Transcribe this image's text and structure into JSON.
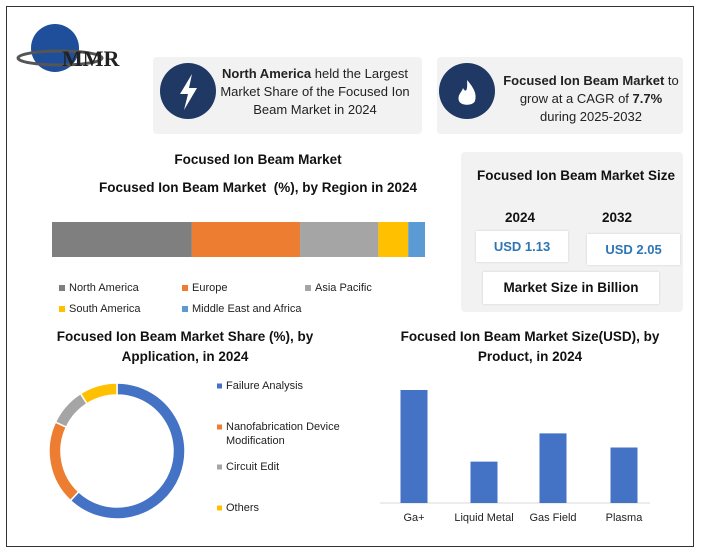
{
  "logo": "MMR",
  "highlights": [
    {
      "parts": [
        {
          "text": "North America",
          "bold": true
        },
        {
          "text": " held the Largest Market Share of the Focused Ion Beam Market in 2024",
          "bold": false
        }
      ]
    },
    {
      "parts": [
        {
          "text": "Focused Ion Beam Market",
          "bold": true
        },
        {
          "text": " to grow at a CAGR of ",
          "bold": false
        },
        {
          "text": "7.7%",
          "bold": true
        },
        {
          "text": " during 2025-2032",
          "bold": false
        }
      ]
    }
  ],
  "market_size": {
    "title": "Focused Ion Beam Market Size",
    "years": [
      "2024",
      "2032"
    ],
    "values": [
      "USD 1.13",
      "USD 2.05"
    ],
    "footer": "Market Size in Billion"
  },
  "chart_data": [
    {
      "type": "stacked_bar",
      "title": "Focused Ion Beam Market",
      "subtitle": "Focused Ion Beam Market  (%), by Region in 2024",
      "series": [
        {
          "name": "North America",
          "color": "#7f7f7f",
          "values": [
            37.5
          ]
        },
        {
          "name": "Europe",
          "color": "#ed7d31",
          "values": [
            29
          ]
        },
        {
          "name": "Asia Pacific",
          "color": "#a5a5a5",
          "values": [
            21
          ]
        },
        {
          "name": "South America",
          "color": "#ffc000",
          "values": [
            8
          ]
        },
        {
          "name": "Middle East and Africa",
          "color": "#5b9bd5",
          "values": [
            4.5
          ]
        }
      ]
    },
    {
      "type": "donut",
      "title": "Focused Ion Beam Market Share (%), by Application, in 2024",
      "categories": [
        "Failure Analysis",
        "Nanofabrication Device Modification",
        "Circuit Edit",
        "Others"
      ],
      "values": [
        62,
        20,
        9,
        9
      ],
      "colors": [
        "#4472c4",
        "#ed7d31",
        "#a5a5a5",
        "#ffc000"
      ]
    },
    {
      "type": "bar",
      "title": "Focused Ion Beam Market Size(USD), by Product, in 2024",
      "categories": [
        "Ga+",
        "Liquid Metal",
        "Gas Field",
        "Plasma"
      ],
      "values": [
        112,
        41,
        69,
        55
      ],
      "color": "#4472c4"
    }
  ]
}
